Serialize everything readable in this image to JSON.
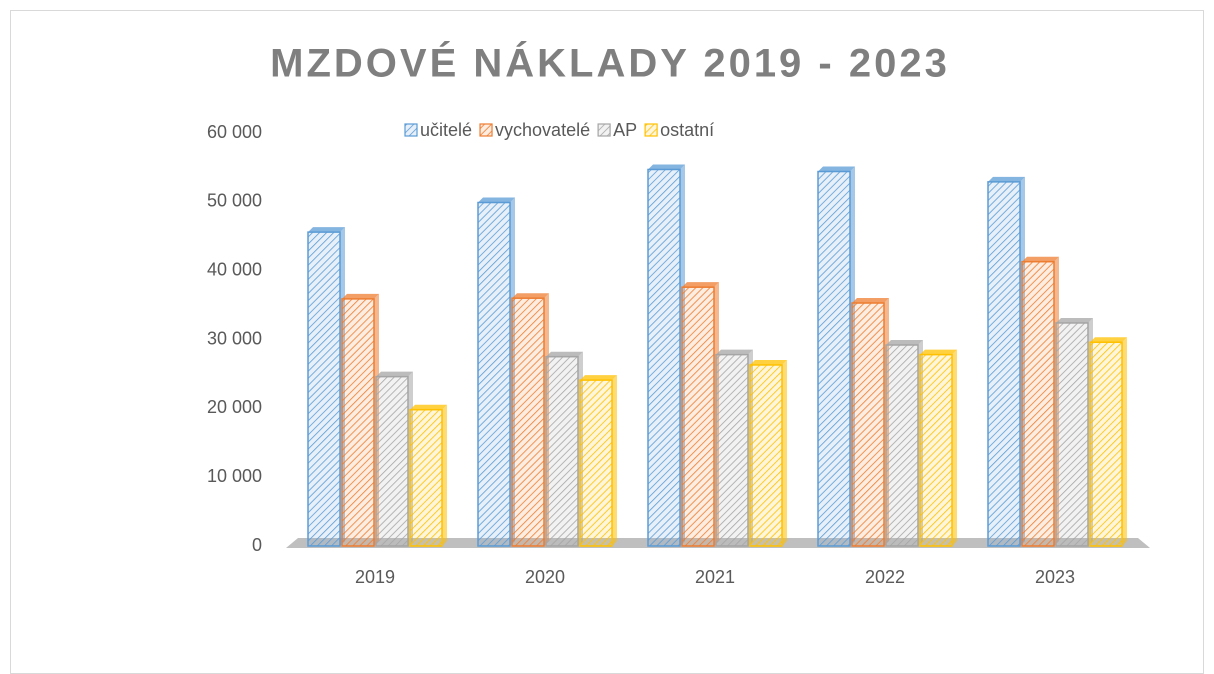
{
  "chart_data": {
    "type": "bar3d",
    "title": "MZDOVÉ NÁKLADY 2019 - 2023",
    "categories": [
      "2019",
      "2020",
      "2021",
      "2022",
      "2023"
    ],
    "series": [
      {
        "name": "učitelé",
        "color": "#5b9bd5",
        "values": [
          45600,
          49900,
          54700,
          54400,
          52900
        ]
      },
      {
        "name": "vychovatelé",
        "color": "#ed7d31",
        "values": [
          35900,
          36000,
          37600,
          35300,
          41300
        ]
      },
      {
        "name": "AP",
        "color": "#a5a5a5",
        "values": [
          24600,
          27500,
          27800,
          29200,
          32400
        ]
      },
      {
        "name": "ostatní",
        "color": "#ffc000",
        "values": [
          19800,
          24100,
          26300,
          27800,
          29600
        ]
      }
    ],
    "ylim": [
      0,
      60000
    ],
    "yticks": [
      0,
      {
        "value": 10000,
        "label": "10 000"
      },
      {
        "value": 20000,
        "label": "20 000"
      },
      {
        "value": 30000,
        "label": "30 000"
      },
      {
        "value": 40000,
        "label": "40 000"
      },
      {
        "value": 50000,
        "label": "50 000"
      },
      {
        "value": 60000,
        "label": "60 000"
      }
    ],
    "grid": false,
    "legend": "top"
  }
}
